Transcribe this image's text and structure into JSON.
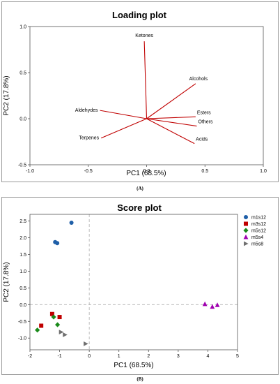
{
  "chart_data": [
    {
      "type": "loading",
      "title": "Loading plot",
      "xlabel": "PC1  (68.5%)",
      "ylabel": "PC2  (17.8%)",
      "xlim": [
        -1.0,
        1.0
      ],
      "ylim": [
        -0.5,
        1.0
      ],
      "xticks": [
        "-1.0",
        "-0.5",
        "0.0",
        "0.5",
        "1.0"
      ],
      "yticks": [
        "-0.5",
        "0.0",
        "0.5",
        "1.0"
      ],
      "series_color": "#c00000",
      "vectors": [
        {
          "name": "Ketones",
          "x": -0.02,
          "y": 0.84
        },
        {
          "name": "Alcohols",
          "x": 0.42,
          "y": 0.38
        },
        {
          "name": "Esters",
          "x": 0.42,
          "y": 0.02
        },
        {
          "name": "Others",
          "x": 0.43,
          "y": -0.08
        },
        {
          "name": "Acids",
          "x": 0.41,
          "y": -0.27
        },
        {
          "name": "Aldehydes",
          "x": -0.4,
          "y": 0.09
        },
        {
          "name": "Terpenes",
          "x": -0.39,
          "y": -0.21
        }
      ]
    },
    {
      "type": "scatter",
      "title": "Score plot",
      "xlabel": "PC1  (68.5%)",
      "ylabel": "PC2  (17.8%)",
      "xlim": [
        -2.0,
        5.0
      ],
      "ylim": [
        -1.35,
        2.7
      ],
      "xticks": [
        "-2",
        "-1",
        "0",
        "1",
        "2",
        "3",
        "4",
        "5"
      ],
      "yticks": [
        "-1.0",
        "-0.5",
        "0.0",
        "0.5",
        "1.0",
        "1.5",
        "2.0",
        "2.5"
      ],
      "legend_position": "right",
      "series": [
        {
          "name": "m1s12",
          "marker": "circle",
          "color": "#1f5fa8",
          "points": [
            [
              -0.6,
              2.45
            ],
            [
              -1.15,
              1.87
            ],
            [
              -1.08,
              1.84
            ]
          ]
        },
        {
          "name": "m3s12",
          "marker": "square",
          "color": "#c00000",
          "points": [
            [
              -1.25,
              -0.28
            ],
            [
              -1.0,
              -0.37
            ],
            [
              -1.62,
              -0.63
            ]
          ]
        },
        {
          "name": "m5s12",
          "marker": "diamond",
          "color": "#1a8a1a",
          "points": [
            [
              -1.2,
              -0.37
            ],
            [
              -1.07,
              -0.6
            ],
            [
              -1.75,
              -0.76
            ]
          ]
        },
        {
          "name": "m5s4",
          "marker": "triangle-up",
          "color": "#a000b0",
          "points": [
            [
              3.9,
              0.02
            ],
            [
              4.15,
              -0.06
            ],
            [
              4.32,
              -0.01
            ]
          ]
        },
        {
          "name": "m5s8",
          "marker": "triangle-right",
          "color": "#707070",
          "points": [
            [
              -0.95,
              -0.82
            ],
            [
              -0.82,
              -0.9
            ],
            [
              -0.12,
              -1.17
            ]
          ]
        }
      ]
    }
  ],
  "captions": {
    "a": "(A)",
    "b": "(B)"
  }
}
